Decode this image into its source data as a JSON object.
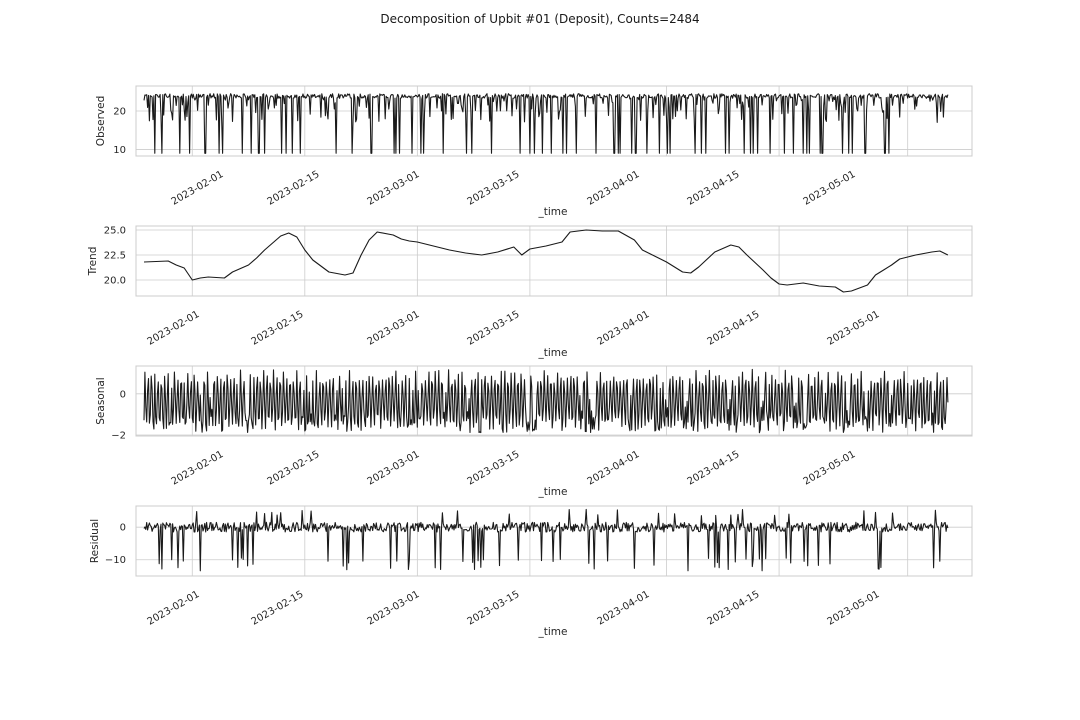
{
  "figure": {
    "title": "Decomposition of Upbit #01 (Deposit), Counts=2484"
  },
  "chart_data": [
    {
      "type": "line",
      "name": "observed",
      "xlabel": "_time",
      "ylabel": "Observed",
      "xlim": [
        "2023-01-25",
        "2023-05-09"
      ],
      "ylim": [
        8.3,
        26.5
      ],
      "yticks": [
        10,
        20
      ],
      "ytick_labels": [
        "10",
        "20"
      ],
      "xticks": [
        "2023-02-01",
        "2023-02-15",
        "2023-03-01",
        "2023-03-15",
        "2023-04-01",
        "2023-04-15",
        "2023-05-01"
      ],
      "x_tick_dates_are_labels": true,
      "series_range": [
        "2023-01-26",
        "2023-05-06"
      ],
      "series": [
        {
          "baseline": 24.5,
          "min": 9,
          "max": 25
        }
      ],
      "grid": true
    },
    {
      "type": "line",
      "name": "trend",
      "xlabel": "_time",
      "ylabel": "Trend",
      "xlim": [
        "2023-01-25",
        "2023-05-09"
      ],
      "ylim": [
        18.4,
        25.4
      ],
      "yticks": [
        20.0,
        22.5,
        25.0
      ],
      "ytick_labels": [
        "20.0",
        "22.5",
        "25.0"
      ],
      "xticks": [
        "2023-02-01",
        "2023-02-15",
        "2023-03-01",
        "2023-03-15",
        "2023-04-01",
        "2023-04-15",
        "2023-05-01"
      ],
      "series_range": [
        "2023-01-26",
        "2023-05-06"
      ],
      "series": [
        {
          "x": [
            "2023-01-26",
            "2023-01-29",
            "2023-01-30",
            "2023-01-31",
            "2023-02-01",
            "2023-02-02",
            "2023-02-03",
            "2023-02-05",
            "2023-02-06",
            "2023-02-08",
            "2023-02-09",
            "2023-02-10",
            "2023-02-12",
            "2023-02-13",
            "2023-02-14",
            "2023-02-15",
            "2023-02-16",
            "2023-02-18",
            "2023-02-20",
            "2023-02-21",
            "2023-02-22",
            "2023-02-23",
            "2023-02-24",
            "2023-02-26",
            "2023-02-27",
            "2023-02-28",
            "2023-03-01",
            "2023-03-03",
            "2023-03-05",
            "2023-03-07",
            "2023-03-09",
            "2023-03-11",
            "2023-03-13",
            "2023-03-14",
            "2023-03-15",
            "2023-03-17",
            "2023-03-19",
            "2023-03-20",
            "2023-03-22",
            "2023-03-24",
            "2023-03-26",
            "2023-03-28",
            "2023-03-29",
            "2023-03-31",
            "2023-04-01",
            "2023-04-03",
            "2023-04-04",
            "2023-04-05",
            "2023-04-07",
            "2023-04-09",
            "2023-04-10",
            "2023-04-11",
            "2023-04-13",
            "2023-04-14",
            "2023-04-15",
            "2023-04-16",
            "2023-04-18",
            "2023-04-20",
            "2023-04-22",
            "2023-04-23",
            "2023-04-24",
            "2023-04-26",
            "2023-04-27",
            "2023-04-28",
            "2023-04-29",
            "2023-04-30",
            "2023-05-02",
            "2023-05-04",
            "2023-05-05",
            "2023-05-06"
          ],
          "values": [
            21.8,
            21.9,
            21.5,
            21.2,
            20.0,
            20.2,
            20.3,
            20.2,
            20.8,
            21.5,
            22.2,
            23.0,
            24.4,
            24.7,
            24.3,
            23.0,
            22.0,
            20.8,
            20.5,
            20.7,
            22.5,
            24.0,
            24.8,
            24.5,
            24.1,
            23.9,
            23.8,
            23.4,
            23.0,
            22.7,
            22.5,
            22.8,
            23.3,
            22.5,
            23.1,
            23.4,
            23.8,
            24.8,
            25.0,
            24.9,
            24.9,
            24.0,
            23.0,
            22.2,
            21.8,
            20.8,
            20.7,
            21.3,
            22.8,
            23.5,
            23.3,
            22.5,
            21.0,
            20.2,
            19.6,
            19.5,
            19.7,
            19.4,
            19.3,
            18.8,
            18.9,
            19.5,
            20.5,
            21.0,
            21.5,
            22.1,
            22.5,
            22.8,
            22.9,
            22.5
          ]
        }
      ],
      "grid": true
    },
    {
      "type": "line",
      "name": "seasonal",
      "xlabel": "_time",
      "ylabel": "Seasonal",
      "xlim": [
        "2023-01-25",
        "2023-05-09"
      ],
      "ylim": [
        -2.05,
        1.35
      ],
      "yticks": [
        -2,
        0
      ],
      "ytick_labels": [
        "−2",
        "0"
      ],
      "xticks": [
        "2023-02-01",
        "2023-02-15",
        "2023-03-01",
        "2023-03-15",
        "2023-04-01",
        "2023-04-15",
        "2023-05-01"
      ],
      "series_range": [
        "2023-01-26",
        "2023-05-06"
      ],
      "series": [
        {
          "min": -1.9,
          "max": 1.2
        }
      ],
      "grid": true
    },
    {
      "type": "line",
      "name": "residual",
      "xlabel": "_time",
      "ylabel": "Residual",
      "xlim": [
        "2023-01-25",
        "2023-05-09"
      ],
      "ylim": [
        -15,
        6.5
      ],
      "yticks": [
        -10,
        0
      ],
      "ytick_labels": [
        "−10",
        "0"
      ],
      "xticks": [
        "2023-02-01",
        "2023-02-15",
        "2023-03-01",
        "2023-03-15",
        "2023-04-01",
        "2023-04-15",
        "2023-05-01"
      ],
      "series_range": [
        "2023-01-26",
        "2023-05-06"
      ],
      "series": [
        {
          "min": -13.5,
          "max": 5.5
        }
      ],
      "grid": true
    }
  ]
}
